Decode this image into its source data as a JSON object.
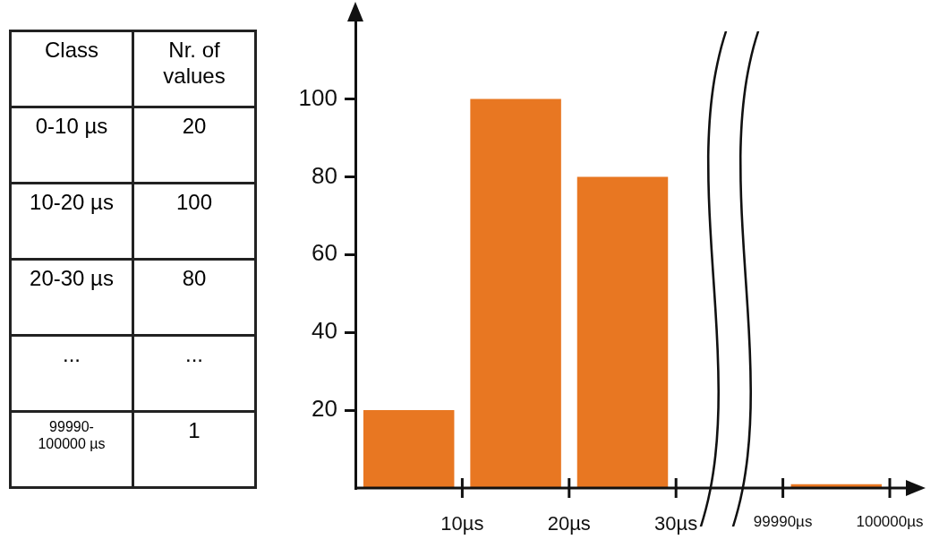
{
  "chart_data": [
    {
      "type": "other",
      "annotations": [
        "Class",
        "Nr. of values",
        "0-10 µs",
        "20",
        "10-20 µs",
        "100",
        "20-30 µs",
        "80",
        "...",
        "...",
        "99990-100000 µs",
        "1"
      ]
    },
    {
      "type": "bar",
      "categories": [
        null,
        null,
        null,
        null
      ],
      "values": [
        20,
        100,
        80,
        1
      ],
      "color": "#e87722",
      "ylim": [
        0,
        120
      ],
      "yticks": [
        20,
        40,
        60,
        80,
        100
      ],
      "annotations": [
        "10µs",
        "20µs",
        "30µs",
        "99990µs",
        "100000µs"
      ]
    }
  ]
}
